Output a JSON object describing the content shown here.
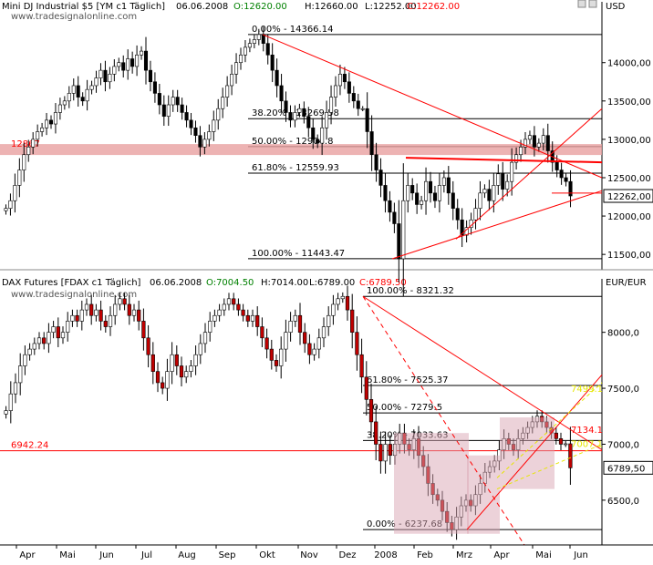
{
  "chart_data": [
    {
      "type": "candlestick",
      "header": {
        "instrument": "Mini DJ Industrial $5 [YM c1  Täglich]",
        "date": "06.06.2008",
        "open": "O:12620.00",
        "high": "H:12660.00",
        "low": "L:12252.00",
        "close": "C:12262.00"
      },
      "currency": "USD",
      "ylim": [
        11300,
        14650
      ],
      "y_ticks": [
        "14000,00",
        "13500,00",
        "13000,00",
        "12500,00",
        "12000,00",
        "11500,00"
      ],
      "y_tick_values": [
        14000,
        13500,
        13000,
        12500,
        12000,
        11500
      ],
      "last_price_label": "12262,00",
      "last_price": 12262,
      "hline_label": "12867",
      "hline_value": 12867,
      "fib_levels": [
        {
          "label": "0.00% - 14366.14",
          "value": 14366.14
        },
        {
          "label": "38.20% - 13269.58",
          "value": 13269.58
        },
        {
          "label": "50.00% - 12904.8",
          "value": 12904.8
        },
        {
          "label": "61.80% - 12559.93",
          "value": 12559.93
        },
        {
          "label": "100.00% - 11443.47",
          "value": 11443.47
        }
      ],
      "close_series": [
        12100,
        12200,
        12400,
        12600,
        12800,
        12900,
        13000,
        13100,
        13150,
        13250,
        13200,
        13350,
        13450,
        13500,
        13600,
        13700,
        13550,
        13500,
        13650,
        13700,
        13800,
        13900,
        13750,
        13850,
        13950,
        14000,
        13900,
        14050,
        13950,
        14100,
        14150,
        13900,
        13750,
        13600,
        13450,
        13300,
        13450,
        13550,
        13450,
        13350,
        13250,
        13150,
        13050,
        12900,
        13000,
        13100,
        13250,
        13400,
        13550,
        13700,
        13850,
        14000,
        14100,
        14200,
        14250,
        14300,
        14366,
        14250,
        14100,
        13900,
        13700,
        13500,
        13350,
        13250,
        13350,
        13400,
        13300,
        13150,
        13000,
        12950,
        13150,
        13350,
        13550,
        13700,
        13850,
        13750,
        13600,
        13500,
        13400,
        13400,
        13100,
        12800,
        12600,
        12400,
        12200,
        12050,
        11900,
        11443,
        12200,
        12400,
        12300,
        12150,
        12200,
        12450,
        12300,
        12200,
        12400,
        12500,
        12300,
        12100,
        11950,
        11750,
        11850,
        11950,
        12100,
        12300,
        12350,
        12200,
        12400,
        12550,
        12350,
        12450,
        12700,
        12800,
        12900,
        13000,
        13050,
        12900,
        12950,
        13050,
        12850,
        12700,
        12600,
        12500,
        12450,
        12262
      ]
    },
    {
      "type": "candlestick",
      "header": {
        "instrument": "DAX Futures [FDAX c1  Täglich]",
        "date": "06.06.2008",
        "open": "O:7004.50",
        "high": "H:7014.00",
        "low": "L:6789.00",
        "close": "C:6789.50"
      },
      "currency": "EUR/EUR",
      "ylim": [
        6100,
        8380
      ],
      "y_ticks": [
        "8000,0",
        "7500,0",
        "7000,0",
        "6500,0"
      ],
      "y_tick_values": [
        8000,
        7500,
        7000,
        6500
      ],
      "last_price_label": "6789,50",
      "last_price": 6789.5,
      "hline_label": "6942.24",
      "hline_value": 6942.24,
      "fib_levels": [
        {
          "label": "100.00% - 8321.32",
          "value": 8321.32
        },
        {
          "label": "61.80% - 7525.37",
          "value": 7525.37
        },
        {
          "label": "50.00% - 7279.5",
          "value": 7279.5
        },
        {
          "label": "38.20% - 7033.63",
          "value": 7033.63
        },
        {
          "label": "0.00% - 6237.68",
          "value": 6237.68
        }
      ],
      "price_labels": [
        {
          "label": "7499.1",
          "value": 7499.1
        },
        {
          "label": "7134.1",
          "value": 7134.1
        },
        {
          "label": "7007.1",
          "value": 7007.1
        }
      ],
      "close_series": [
        7300,
        7450,
        7550,
        7700,
        7800,
        7850,
        7900,
        7950,
        7900,
        8000,
        8050,
        7950,
        8000,
        8100,
        8150,
        8100,
        8200,
        8250,
        8150,
        8200,
        8100,
        8050,
        8150,
        8250,
        8300,
        8250,
        8150,
        8200,
        8100,
        7950,
        7800,
        7650,
        7550,
        7500,
        7650,
        7800,
        7700,
        7600,
        7650,
        7700,
        7800,
        7900,
        8000,
        8100,
        8150,
        8200,
        8250,
        8300,
        8250,
        8200,
        8150,
        8100,
        8150,
        8050,
        7950,
        7850,
        7750,
        7700,
        7850,
        8000,
        8100,
        8150,
        8000,
        7900,
        7800,
        7850,
        7950,
        8050,
        8150,
        8250,
        8300,
        8321,
        8200,
        8000,
        7800,
        7600,
        7400,
        7200,
        7000,
        6850,
        7000,
        6900,
        7000,
        7100,
        7000,
        6950,
        7050,
        6900,
        6800,
        6650,
        6550,
        6500,
        6400,
        6300,
        6237,
        6350,
        6450,
        6500,
        6450,
        6550,
        6650,
        6750,
        6800,
        6850,
        6950,
        7050,
        7000,
        6950,
        7050,
        7100,
        7150,
        7200,
        7250,
        7200,
        7150,
        7100,
        7050,
        7000,
        7004,
        6789
      ]
    }
  ],
  "time_axis": [
    "Apr",
    "Mai",
    "Jun",
    "Jul",
    "Aug",
    "Sep",
    "Okt",
    "Nov",
    "Dez",
    "2008",
    "Feb",
    "Mrz",
    "Apr",
    "Mai",
    "Jun"
  ],
  "watermark": "www.tradesignalonline.com",
  "colors": {
    "up": "#ffffff",
    "down": "#000000",
    "dax_down": "#c00000",
    "line_red": "#ff0000",
    "band": "#e8a0a0",
    "box": "#d9a5b3",
    "yellow": "#e6e600",
    "header_green": "#008000",
    "header_red": "#ff0000"
  }
}
